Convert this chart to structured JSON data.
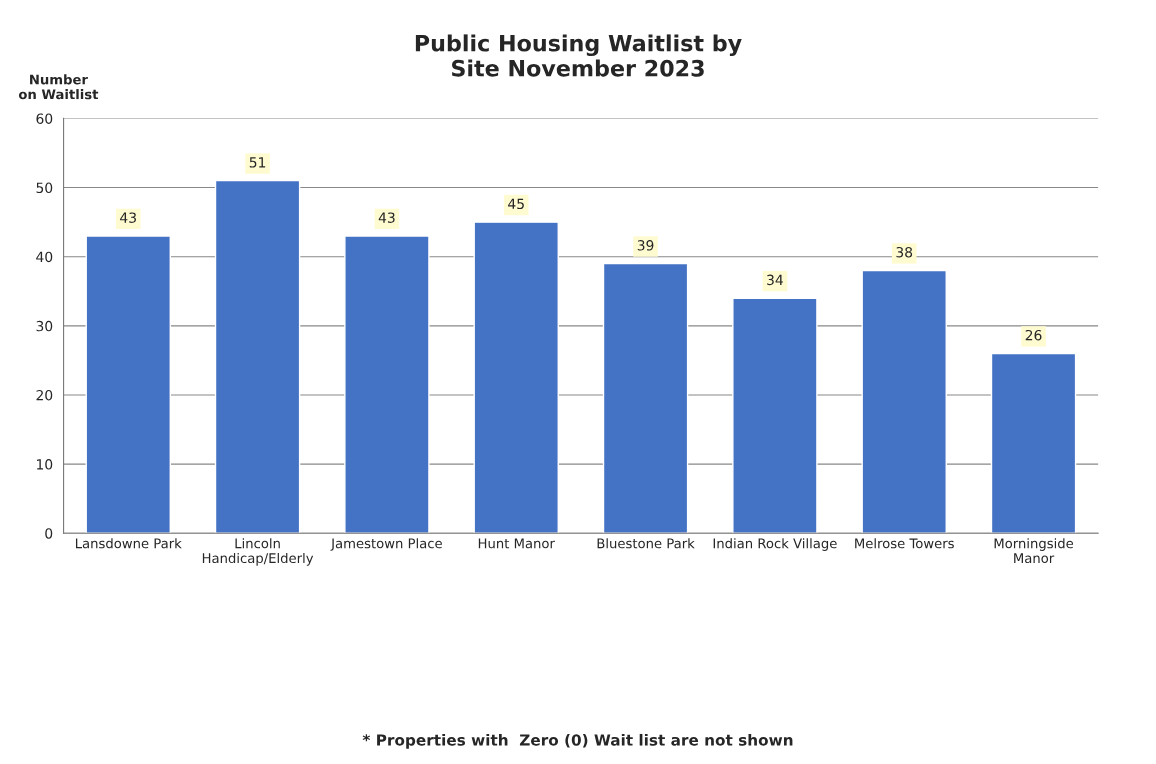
{
  "chart_data": {
    "type": "bar",
    "title": "Public Housing Waitlist by\nSite November 2023",
    "ylabel": "Number\non Waitlist",
    "categories": [
      "Lansdowne Park",
      "Lincoln\nHandicap/Elderly",
      "Jamestown Place",
      "Hunt Manor",
      "Bluestone Park",
      "Indian Rock Village",
      "Melrose Towers",
      "Morningside\nManor"
    ],
    "values": [
      43,
      51,
      43,
      45,
      39,
      34,
      38,
      26
    ],
    "color": "#4472c4",
    "ylim": [
      0,
      60
    ],
    "yticks": [
      0,
      10,
      20,
      30,
      40,
      50,
      60
    ],
    "grid": "y",
    "data_labels": true,
    "annotations": [
      "* Properties with  Zero (0) Wait list are not shown"
    ]
  }
}
